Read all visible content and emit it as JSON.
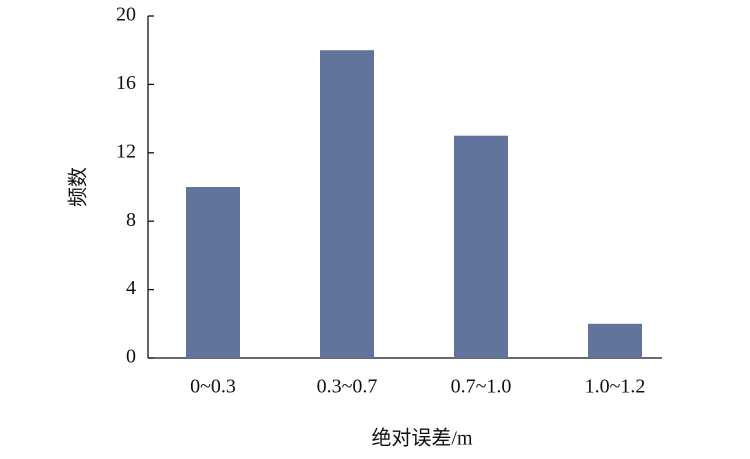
{
  "chart_data": {
    "type": "bar",
    "categories": [
      "0~0.3",
      "0.3~0.7",
      "0.7~1.0",
      "1.0~1.2"
    ],
    "values": [
      10,
      18,
      13,
      2
    ],
    "color": "#63749c",
    "ylim": [
      0,
      20
    ],
    "yticks": [
      0,
      4,
      8,
      12,
      16,
      20
    ],
    "ylabel": "频数",
    "xlabel": "绝对误差/m"
  }
}
